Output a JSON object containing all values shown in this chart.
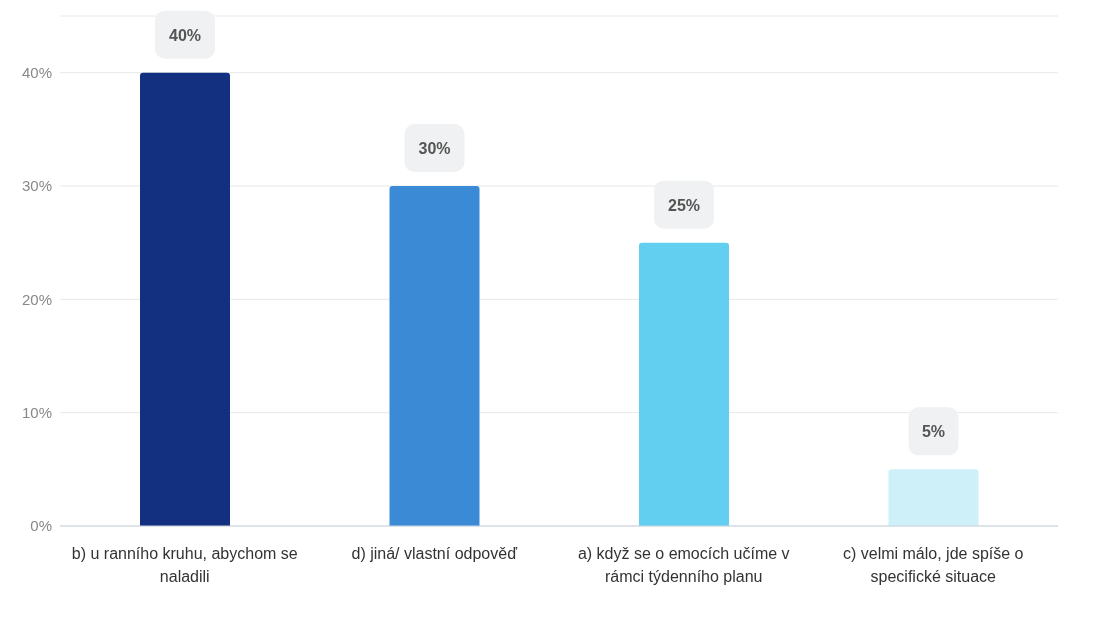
{
  "chart_data": {
    "type": "bar",
    "categories": [
      "b) u ranního kruhu, abychom se naladili",
      "d) jiná/ vlastní odpověď",
      "a) když se o emocích učíme v rámci týdenního planu",
      "c) velmi málo, jde spíše o specifické situace"
    ],
    "values": [
      40,
      30,
      25,
      5
    ],
    "colors": [
      "#12307f",
      "#3a8ad6",
      "#62cff0",
      "#cdf0f9"
    ],
    "value_labels": [
      "40%",
      "30%",
      "25%",
      "5%"
    ],
    "ylim": [
      0,
      45
    ],
    "yticks": [
      {
        "value": 0,
        "label": "0%"
      },
      {
        "value": 10,
        "label": "10%"
      },
      {
        "value": 20,
        "label": "20%"
      },
      {
        "value": 30,
        "label": "30%"
      },
      {
        "value": 40,
        "label": "40%"
      }
    ],
    "grid": "y"
  }
}
